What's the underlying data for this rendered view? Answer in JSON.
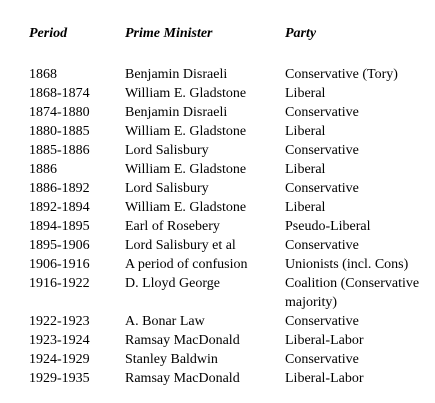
{
  "table": {
    "headers": [
      "Period",
      "Prime Minister",
      "Party"
    ],
    "rows": [
      [
        "1868",
        "Benjamin Disraeli",
        "Conservative (Tory)"
      ],
      [
        "1868-1874",
        "William E. Gladstone",
        "Liberal"
      ],
      [
        "1874-1880",
        "Benjamin Disraeli",
        "Conservative"
      ],
      [
        "1880-1885",
        "William E. Gladstone",
        "Liberal"
      ],
      [
        "1885-1886",
        "Lord Salisbury",
        "Conservative"
      ],
      [
        "1886",
        "William E. Gladstone",
        "Liberal"
      ],
      [
        "1886-1892",
        "Lord Salisbury",
        "Conservative"
      ],
      [
        "1892-1894",
        "William E. Gladstone",
        "Liberal"
      ],
      [
        "1894-1895",
        "Earl of Rosebery",
        "Pseudo-Liberal"
      ],
      [
        "1895-1906",
        "Lord Salisbury et al",
        "Conservative"
      ],
      [
        "1906-1916",
        "A period of confusion",
        "Unionists (incl. Cons)"
      ],
      [
        "1916-1922",
        "D. Lloyd George",
        "Coalition (Conservative majority)"
      ],
      [
        "1922-1923",
        "A. Bonar Law",
        "Conservative"
      ],
      [
        "1923-1924",
        "Ramsay MacDonald",
        "Liberal-Labor"
      ],
      [
        "1924-1929",
        "Stanley Baldwin",
        "Conservative"
      ],
      [
        "1929-1935",
        "Ramsay MacDonald",
        "Liberal-Labor"
      ]
    ]
  }
}
